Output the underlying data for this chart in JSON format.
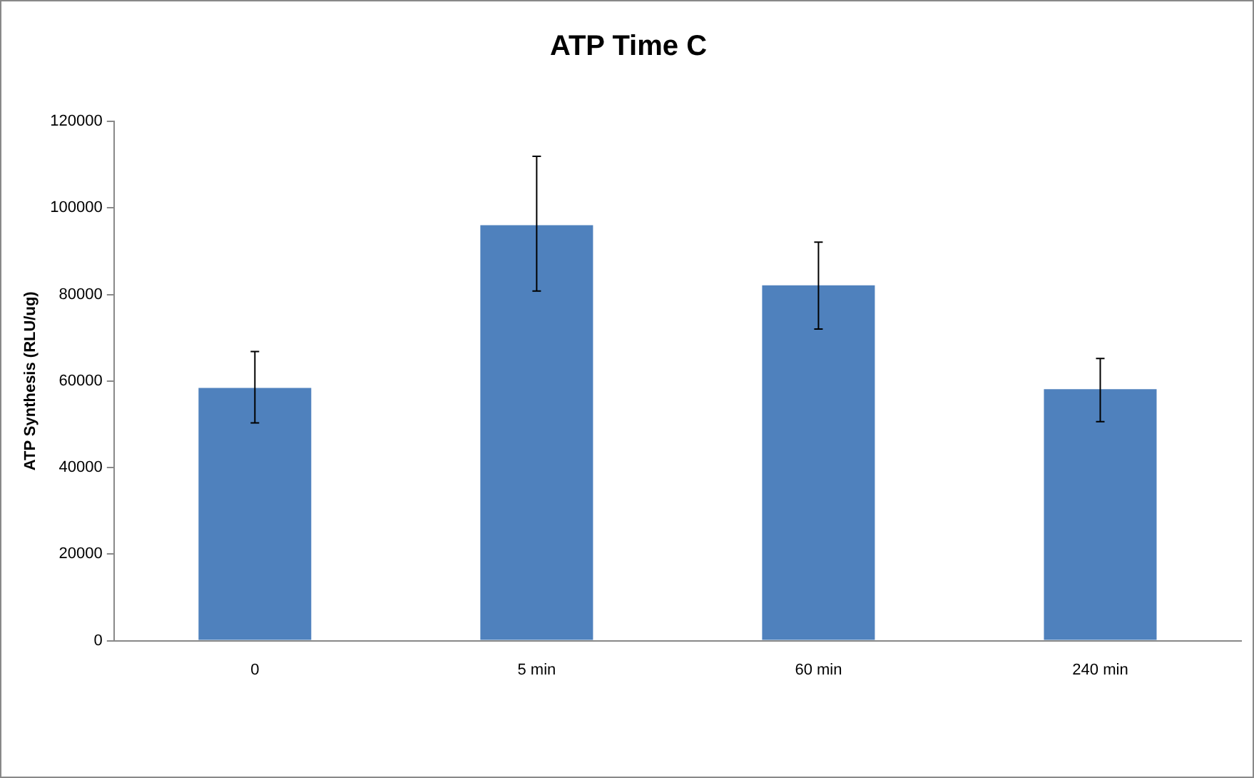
{
  "chart_data": {
    "type": "bar",
    "title": "ATP Time C",
    "ylabel": "ATP Synthesis (RLU/ug)",
    "categories": [
      "0",
      "5 min",
      "60 min",
      "240 min"
    ],
    "values": [
      58400,
      96000,
      82100,
      58100
    ],
    "errors": [
      [
        50300,
        66800
      ],
      [
        80800,
        111900
      ],
      [
        72000,
        92100
      ],
      [
        50600,
        65200
      ]
    ],
    "color": "#4f81bd",
    "ylim": [
      0,
      120000
    ],
    "yticks": [
      0,
      20000,
      40000,
      60000,
      80000,
      100000,
      120000
    ],
    "grid": false,
    "legend": false
  }
}
